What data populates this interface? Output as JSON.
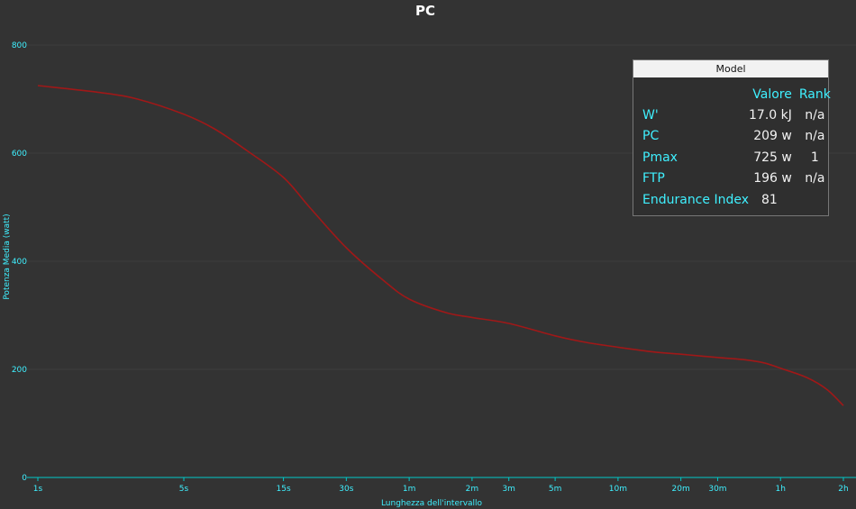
{
  "chart_data": {
    "type": "line",
    "title": "PC",
    "xlabel": "Lunghezza dell'intervallo",
    "ylabel": "Potenza Media (watt)",
    "x_scale": "log",
    "x_tick_labels": [
      "1s",
      "5s",
      "15s",
      "30s",
      "1m",
      "2m",
      "3m",
      "5m",
      "10m",
      "20m",
      "30m",
      "1h",
      "2h"
    ],
    "y_ticks": [
      0,
      200,
      400,
      600,
      800
    ],
    "ylim": [
      0,
      850
    ],
    "xlim": [
      "1s",
      "2h"
    ],
    "grid": "horizontal",
    "series": [
      {
        "x": [
          "1s",
          "2s",
          "3s",
          "5s",
          "7s",
          "10s",
          "15s",
          "20s",
          "30s",
          "45s",
          "1m",
          "1m30s",
          "2m",
          "3m",
          "5m",
          "7m",
          "10m",
          "15m",
          "20m",
          "30m",
          "40m",
          "50m",
          "1h",
          "1h20m",
          "1h40m",
          "2h"
        ],
        "values": [
          725,
          712,
          700,
          672,
          645,
          605,
          555,
          500,
          425,
          365,
          330,
          305,
          296,
          285,
          262,
          250,
          241,
          232,
          228,
          222,
          218,
          212,
          202,
          185,
          163,
          133
        ],
        "color": "#a01818"
      }
    ]
  },
  "model": {
    "header": "Model",
    "col_value": "Valore",
    "col_rank": "Rank",
    "rows": [
      {
        "label": "W'",
        "value": "17.0 kJ",
        "rank": "n/a"
      },
      {
        "label": "PC",
        "value": "209 w",
        "rank": "n/a"
      },
      {
        "label": "Pmax",
        "value": "725 w",
        "rank": "1"
      },
      {
        "label": "FTP",
        "value": "196 w",
        "rank": "n/a"
      },
      {
        "label": "Endurance Index",
        "value": "81",
        "rank": ""
      }
    ]
  },
  "colors": {
    "background": "#333333",
    "axis": "#00c8c8",
    "label": "#3ff0ff",
    "line": "#a01818",
    "grid": "#3c3c3c"
  }
}
